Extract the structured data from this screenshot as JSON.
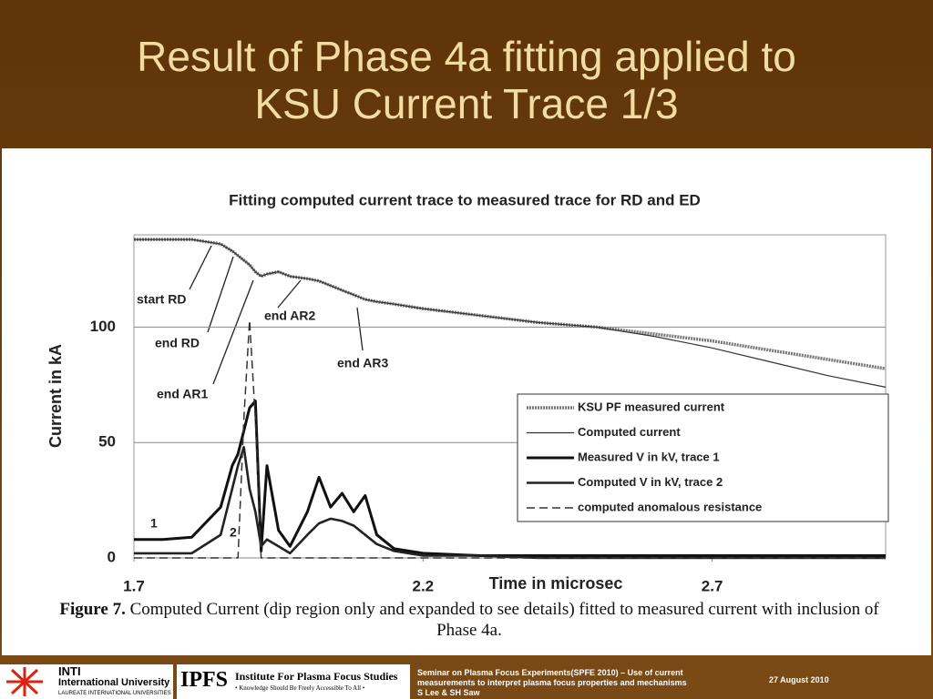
{
  "slide": {
    "title": "Result of Phase 4a fitting applied to\nKSU Current Trace  1/3",
    "caption_label": "Figure 7.",
    "caption_text": "Computed Current (dip region only and expanded to see details) fitted to measured current with inclusion of Phase 4a.",
    "footer_text": "Seminar on Plasma Focus Experiments(SPFE 2010) – Use of current measurements to interpret plasma focus properties and mechanisms",
    "footer_authors": "S Lee & SH Saw",
    "footer_date": "27 August 2010",
    "logo_inti": "INTI",
    "logo_inti_sub": "International University",
    "logo_laureate": "LAUREATE INTERNATIONAL UNIVERSITIES",
    "logo_ipfs": "IPFS",
    "logo_ipfs_name": "Institute For Plasma Focus Studies",
    "logo_ipfs_motto": "• Knowledge Should Be Freely Accessible To All •"
  },
  "chart_data": {
    "type": "line",
    "title": "Fitting computed current trace to measured trace for RD and ED",
    "x_label": "Time in microsec",
    "y_label": "Current  in kA",
    "x": [
      1.7,
      1.75,
      1.8,
      1.85,
      1.87,
      1.88,
      1.89,
      1.9,
      1.91,
      1.92,
      1.93,
      1.95,
      1.97,
      2.0,
      2.02,
      2.04,
      2.06,
      2.08,
      2.1,
      2.12,
      2.15,
      2.2,
      2.3,
      2.4,
      2.5,
      2.6,
      2.7,
      2.8,
      2.9,
      3.0
    ],
    "series": [
      {
        "name": "KSU PF measured current",
        "color": "#777777",
        "values": [
          138,
          138,
          138,
          136,
          133,
          131,
          129,
          127,
          124,
          122,
          123,
          124,
          122,
          121,
          120,
          118,
          116,
          114,
          112,
          111,
          110,
          108,
          105,
          102,
          100,
          97,
          94,
          90,
          86,
          82
        ]
      },
      {
        "name": "Computed current",
        "color": "#333333",
        "values": [
          138,
          138,
          138,
          136,
          133,
          131,
          129,
          127,
          124,
          122,
          123,
          124,
          122,
          121,
          120,
          118,
          116,
          114,
          112,
          111,
          110,
          108,
          105,
          102,
          100,
          96,
          91,
          85,
          79,
          74
        ]
      },
      {
        "name": "Measured V in kV, trace 1",
        "color": "#111111",
        "values": [
          8,
          8,
          9,
          22,
          40,
          45,
          55,
          65,
          68,
          3,
          40,
          12,
          5,
          20,
          35,
          22,
          28,
          20,
          27,
          10,
          4,
          2,
          1,
          1,
          1,
          1,
          1,
          1,
          1,
          1
        ]
      },
      {
        "name": "Computed V in kV, trace 2",
        "color": "#222222",
        "values": [
          2,
          2,
          2,
          10,
          30,
          40,
          48,
          30,
          20,
          5,
          8,
          5,
          2,
          10,
          15,
          17,
          16,
          14,
          10,
          6,
          3,
          1,
          1,
          0,
          0,
          0,
          0,
          0,
          0,
          0
        ]
      },
      {
        "name": "computed anomalous resistance",
        "color": "#333333",
        "dash": true,
        "values": [
          0,
          0,
          0,
          0,
          0,
          0,
          60,
          103,
          60,
          0,
          0,
          0,
          0,
          0,
          0,
          0,
          0,
          0,
          0,
          0,
          0,
          0,
          0,
          0,
          0,
          0,
          0,
          0,
          0,
          0
        ]
      }
    ],
    "xlim": [
      1.7,
      3.0
    ],
    "xticks": [
      1.7,
      2.2,
      2.7
    ],
    "ylim": [
      0,
      140
    ],
    "yticks": [
      0,
      50,
      100
    ],
    "grid": true,
    "annotations": [
      "start RD",
      "end RD",
      "end AR1",
      "end AR2",
      "end AR3",
      "1",
      "2"
    ]
  }
}
